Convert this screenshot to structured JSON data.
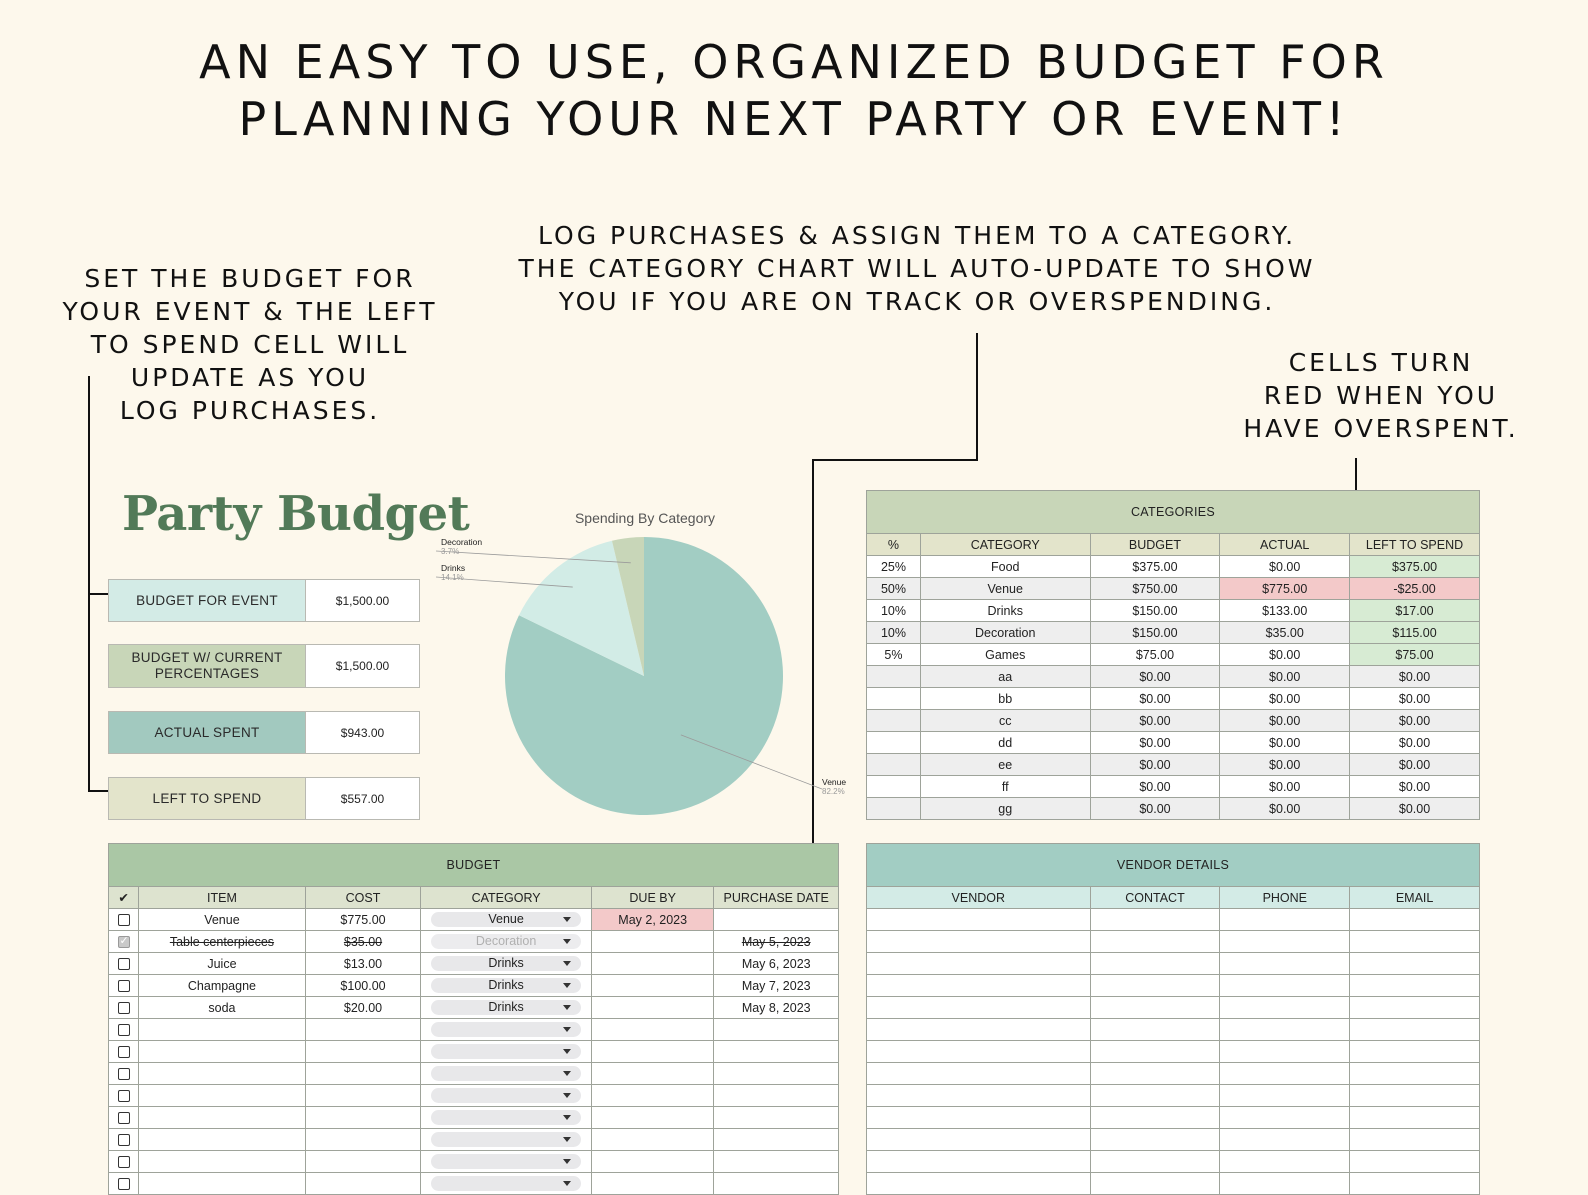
{
  "headline": {
    "line1": "AN EASY TO USE, ORGANIZED BUDGET FOR",
    "line2": "PLANNING YOUR NEXT PARTY OR EVENT!"
  },
  "callouts": {
    "left": "SET THE BUDGET FOR\nYOUR EVENT & THE LEFT\nTO SPEND CELL WILL\nUPDATE AS YOU\nLOG PURCHASES.",
    "middle": "LOG PURCHASES & ASSIGN THEM TO A CATEGORY.\nTHE CATEGORY CHART WILL AUTO-UPDATE TO SHOW\nYOU IF YOU ARE ON TRACK OR OVERSPENDING.",
    "right": "CELLS TURN\nRED WHEN YOU\nHAVE OVERSPENT."
  },
  "brand_title": "Party Budget",
  "summary": [
    {
      "label": "BUDGET FOR EVENT",
      "value": "$1,500.00",
      "color": "#d3ebe6"
    },
    {
      "label": "BUDGET W/ CURRENT PERCENTAGES",
      "value": "$1,500.00",
      "color": "#c8d6b8"
    },
    {
      "label": "ACTUAL SPENT",
      "value": "$943.00",
      "color": "#a2c9bf"
    },
    {
      "label": "LEFT TO SPEND",
      "value": "$557.00",
      "color": "#e3e4cb"
    }
  ],
  "chart_data": {
    "type": "pie",
    "title": "Spending By Category",
    "slices": [
      {
        "label": "Venue",
        "pct": "82.2%",
        "value": 82.2,
        "color": "#a2cdc3"
      },
      {
        "label": "Drinks",
        "pct": "14.1%",
        "value": 14.1,
        "color": "#d2ece6"
      },
      {
        "label": "Decoration",
        "pct": "3.7%",
        "value": 3.7,
        "color": "#c8d6b8"
      }
    ]
  },
  "categories": {
    "title": "CATEGORIES",
    "headers": [
      "%",
      "CATEGORY",
      "BUDGET",
      "ACTUAL",
      "LEFT TO SPEND"
    ],
    "rows": [
      [
        "25%",
        "Food",
        "$375.00",
        "$0.00",
        "$375.00"
      ],
      [
        "50%",
        "Venue",
        "$750.00",
        "$775.00",
        "-$25.00"
      ],
      [
        "10%",
        "Drinks",
        "$150.00",
        "$133.00",
        "$17.00"
      ],
      [
        "10%",
        "Decoration",
        "$150.00",
        "$35.00",
        "$115.00"
      ],
      [
        "5%",
        "Games",
        "$75.00",
        "$0.00",
        "$75.00"
      ],
      [
        "",
        "aa",
        "$0.00",
        "$0.00",
        "$0.00"
      ],
      [
        "",
        "bb",
        "$0.00",
        "$0.00",
        "$0.00"
      ],
      [
        "",
        "cc",
        "$0.00",
        "$0.00",
        "$0.00"
      ],
      [
        "",
        "dd",
        "$0.00",
        "$0.00",
        "$0.00"
      ],
      [
        "",
        "ee",
        "$0.00",
        "$0.00",
        "$0.00"
      ],
      [
        "",
        "ff",
        "$0.00",
        "$0.00",
        "$0.00"
      ],
      [
        "",
        "gg",
        "$0.00",
        "$0.00",
        "$0.00"
      ]
    ],
    "over_color": "#f3c9c9",
    "ok_color": "#d7ebd3"
  },
  "budget": {
    "title": "BUDGET",
    "headers": [
      "✔",
      "ITEM",
      "COST",
      "CATEGORY",
      "DUE BY",
      "PURCHASE DATE"
    ],
    "rows": [
      {
        "checked": false,
        "item": "Venue",
        "cost": "$775.00",
        "category": "Venue",
        "due": "May 2, 2023",
        "date": ""
      },
      {
        "checked": true,
        "item": "Table centerpieces",
        "cost": "$35.00",
        "category": "Decoration",
        "due": "",
        "date": "May 5, 2023"
      },
      {
        "checked": false,
        "item": "Juice",
        "cost": "$13.00",
        "category": "Drinks",
        "due": "",
        "date": "May 6, 2023"
      },
      {
        "checked": false,
        "item": "Champagne",
        "cost": "$100.00",
        "category": "Drinks",
        "due": "",
        "date": "May 7, 2023"
      },
      {
        "checked": false,
        "item": "soda",
        "cost": "$20.00",
        "category": "Drinks",
        "due": "",
        "date": "May 8, 2023"
      },
      {
        "checked": false,
        "item": "",
        "cost": "",
        "category": "",
        "due": "",
        "date": ""
      },
      {
        "checked": false,
        "item": "",
        "cost": "",
        "category": "",
        "due": "",
        "date": ""
      },
      {
        "checked": false,
        "item": "",
        "cost": "",
        "category": "",
        "due": "",
        "date": ""
      },
      {
        "checked": false,
        "item": "",
        "cost": "",
        "category": "",
        "due": "",
        "date": ""
      },
      {
        "checked": false,
        "item": "",
        "cost": "",
        "category": "",
        "due": "",
        "date": ""
      },
      {
        "checked": false,
        "item": "",
        "cost": "",
        "category": "",
        "due": "",
        "date": ""
      },
      {
        "checked": false,
        "item": "",
        "cost": "",
        "category": "",
        "due": "",
        "date": ""
      },
      {
        "checked": false,
        "item": "",
        "cost": "",
        "category": "",
        "due": "",
        "date": ""
      }
    ],
    "due_highlight": "#f3c9c9"
  },
  "vendors": {
    "title": "VENDOR DETAILS",
    "headers": [
      "VENDOR",
      "CONTACT",
      "PHONE",
      "EMAIL"
    ],
    "row_count": 13
  }
}
